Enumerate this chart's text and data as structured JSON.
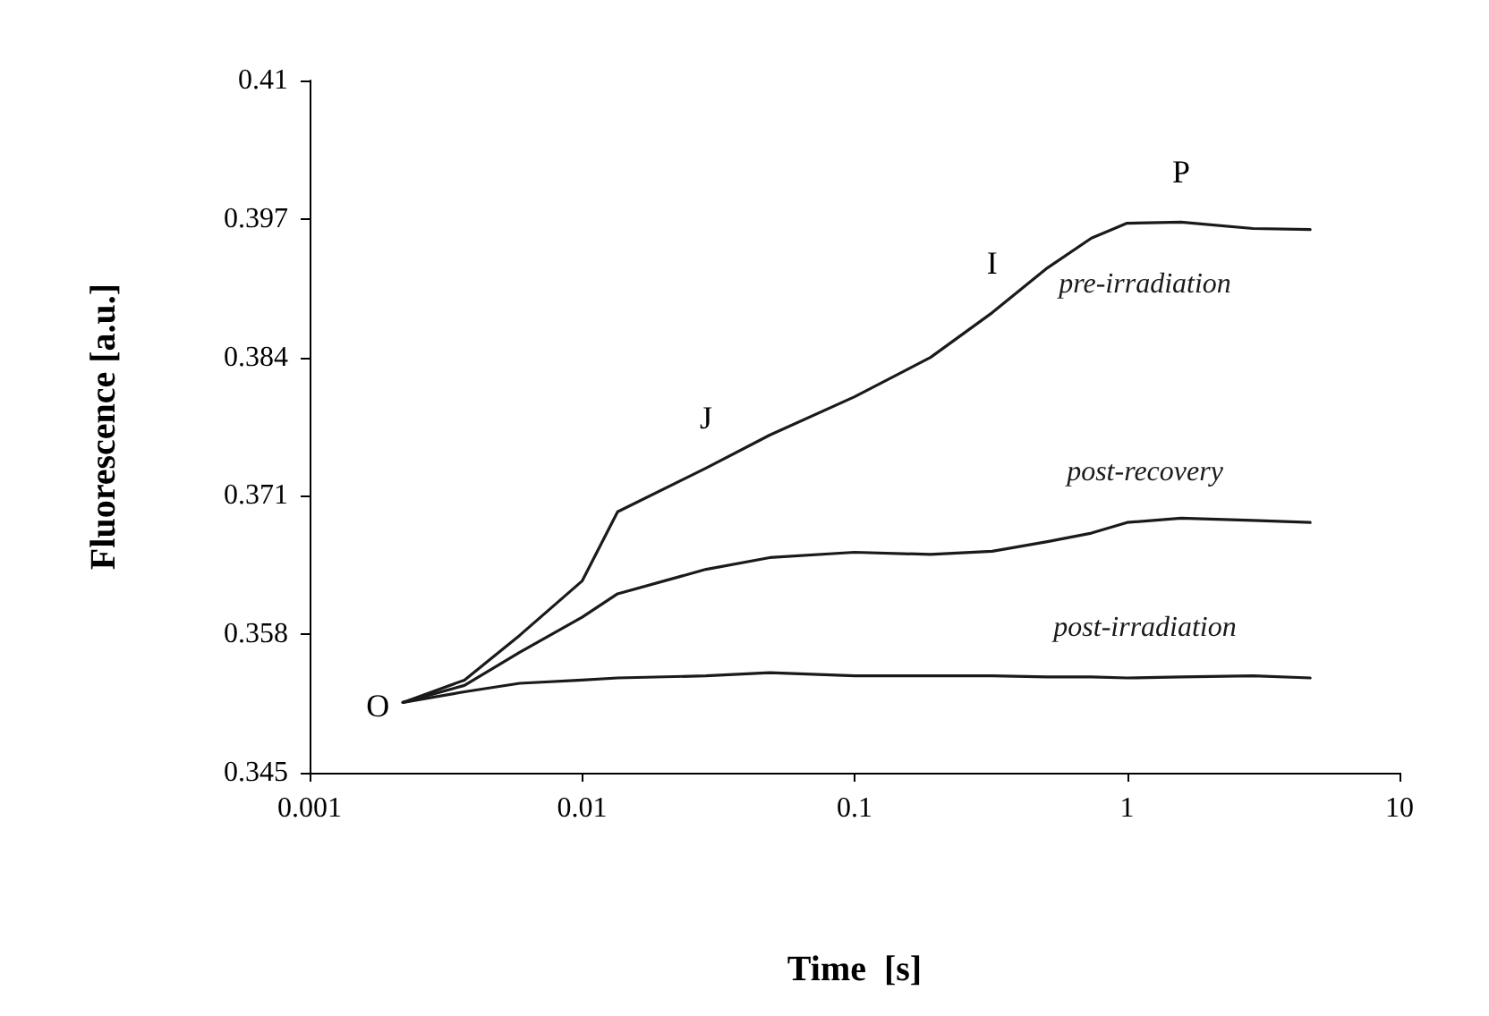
{
  "chart_data": {
    "type": "line",
    "xlabel": "Time  [s]",
    "ylabel": "Fluorescence [a.u.]",
    "log": "x",
    "xlim": [
      0.001,
      10
    ],
    "xticks": [
      0.001,
      0.01,
      0.1,
      1,
      10
    ],
    "ylim": [
      0.345,
      0.41
    ],
    "yticks": [
      0.345,
      0.358,
      0.371,
      0.384,
      0.397,
      0.41
    ],
    "grid": false,
    "legend": false,
    "marker": "none",
    "line_style": "solid",
    "annotations": [
      {
        "text": "O",
        "x": 0.0022,
        "y": 0.3516
      },
      {
        "text": "J",
        "x": 0.0285,
        "y": 0.3736
      },
      {
        "text": "I",
        "x": 0.32,
        "y": 0.3882
      },
      {
        "text": "P",
        "x": 1.58,
        "y": 0.3967
      }
    ],
    "x": [
      0.0022,
      0.0037,
      0.0059,
      0.01,
      0.0135,
      0.0285,
      0.0488,
      0.1,
      0.19,
      0.32,
      0.51,
      0.74,
      1,
      1.58,
      2.9,
      4.7
    ],
    "series": [
      {
        "name": "pre-irradiation",
        "color": "#1a1a1a",
        "values": [
          0.3516,
          0.3537,
          0.3579,
          0.363,
          0.3695,
          0.3736,
          0.3767,
          0.3803,
          0.384,
          0.3882,
          0.3924,
          0.3952,
          0.3966,
          0.3967,
          0.3961,
          0.396
        ]
      },
      {
        "name": "post-recovery",
        "color": "#1a1a1a",
        "values": [
          0.3516,
          0.3532,
          0.3563,
          0.3596,
          0.3618,
          0.3641,
          0.3652,
          0.3657,
          0.3655,
          0.3658,
          0.3667,
          0.3675,
          0.3685,
          0.3689,
          0.3687,
          0.3685
        ]
      },
      {
        "name": "post-irradiation",
        "color": "#1a1a1a",
        "values": [
          0.3516,
          0.3526,
          0.3534,
          0.3537,
          0.3539,
          0.3541,
          0.3544,
          0.3541,
          0.3541,
          0.3541,
          0.354,
          0.354,
          0.3539,
          0.354,
          0.3541,
          0.3539
        ]
      }
    ]
  }
}
